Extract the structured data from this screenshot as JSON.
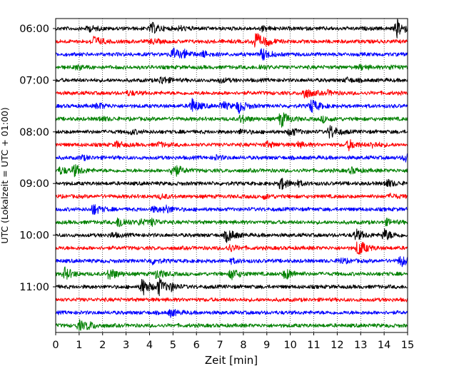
{
  "chart_data": {
    "type": "line",
    "subtype": "helicorder",
    "xlabel": "Zeit  [min]",
    "ylabel": "UTC (Lokalzeit = UTC + 01:00)",
    "xlim": [
      0,
      15
    ],
    "x_ticks": [
      "0",
      "1",
      "2",
      "3",
      "4",
      "5",
      "6",
      "7",
      "8",
      "9",
      "10",
      "11",
      "12",
      "13",
      "14",
      "15"
    ],
    "y_ticks": [
      {
        "label": "06:00",
        "time": "06:00"
      },
      {
        "label": "07:00",
        "time": "07:00"
      },
      {
        "label": "08:00",
        "time": "08:00"
      },
      {
        "label": "09:00",
        "time": "09:00"
      },
      {
        "label": "10:00",
        "time": "10:00"
      },
      {
        "label": "11:00",
        "time": "11:00"
      }
    ],
    "grid": "vertical dotted lines at each minute",
    "start_time": "06:00",
    "minutes_per_line": 15,
    "line_color_cycle": [
      "#000000",
      "#ff0000",
      "#0000ff",
      "#008000"
    ],
    "traces": [
      {
        "start": "06:00",
        "color": "#000000",
        "bursts": [
          [
            1.4,
            0.4
          ],
          [
            4.1,
            0.8
          ],
          [
            5.3,
            0.3
          ],
          [
            8.8,
            0.3
          ],
          [
            14.55,
            1.3
          ]
        ]
      },
      {
        "start": "06:15",
        "color": "#ff0000",
        "bursts": [
          [
            1.6,
            0.8
          ],
          [
            4.1,
            0.3
          ],
          [
            8.5,
            1.4
          ],
          [
            9.0,
            0.3
          ]
        ]
      },
      {
        "start": "06:30",
        "color": "#0000ff",
        "bursts": [
          [
            5.0,
            0.9
          ],
          [
            5.5,
            0.4
          ],
          [
            6.3,
            0.4
          ],
          [
            8.8,
            0.9
          ]
        ]
      },
      {
        "start": "06:45",
        "color": "#008000",
        "bursts": [
          [
            0.9,
            0.3
          ],
          [
            8.7,
            0.3
          ],
          [
            13.0,
            0.3
          ],
          [
            14.3,
            0.3
          ]
        ]
      },
      {
        "start": "07:00",
        "color": "#000000",
        "bursts": [
          [
            4.5,
            0.6
          ],
          [
            7.0,
            0.3
          ],
          [
            12.4,
            0.3
          ]
        ]
      },
      {
        "start": "07:15",
        "color": "#ff0000",
        "bursts": [
          [
            3.1,
            0.3
          ],
          [
            10.6,
            0.8
          ],
          [
            11.6,
            0.3
          ]
        ]
      },
      {
        "start": "07:30",
        "color": "#0000ff",
        "bursts": [
          [
            1.8,
            0.4
          ],
          [
            5.8,
            1.1
          ],
          [
            7.1,
            0.6
          ],
          [
            7.8,
            0.9
          ],
          [
            10.9,
            1.0
          ]
        ]
      },
      {
        "start": "07:45",
        "color": "#008000",
        "bursts": [
          [
            1.9,
            0.3
          ],
          [
            7.9,
            0.6
          ],
          [
            9.6,
            1.2
          ],
          [
            11.4,
            0.4
          ]
        ]
      },
      {
        "start": "08:00",
        "color": "#000000",
        "bursts": [
          [
            3.2,
            0.3
          ],
          [
            7.9,
            0.3
          ],
          [
            10.0,
            0.6
          ],
          [
            11.7,
            1.0
          ]
        ]
      },
      {
        "start": "08:15",
        "color": "#ff0000",
        "bursts": [
          [
            2.6,
            0.4
          ],
          [
            4.4,
            0.3
          ],
          [
            9.0,
            0.4
          ],
          [
            10.3,
            0.4
          ],
          [
            12.5,
            0.7
          ],
          [
            13.5,
            0.4
          ]
        ]
      },
      {
        "start": "08:30",
        "color": "#0000ff",
        "bursts": [
          [
            1.1,
            0.3
          ],
          [
            6.8,
            0.3
          ],
          [
            14.9,
            0.6
          ]
        ]
      },
      {
        "start": "08:45",
        "color": "#008000",
        "bursts": [
          [
            0.2,
            0.5
          ],
          [
            0.8,
            0.8
          ],
          [
            5.0,
            1.1
          ],
          [
            12.6,
            0.4
          ]
        ]
      },
      {
        "start": "09:00",
        "color": "#000000",
        "bursts": [
          [
            9.6,
            0.9
          ],
          [
            10.3,
            0.3
          ],
          [
            14.1,
            0.6
          ]
        ]
      },
      {
        "start": "09:15",
        "color": "#ff0000",
        "bursts": [
          [
            4.5,
            0.3
          ],
          [
            8.9,
            0.3
          ],
          [
            14.3,
            0.3
          ]
        ]
      },
      {
        "start": "09:30",
        "color": "#0000ff",
        "bursts": [
          [
            1.6,
            0.8
          ],
          [
            4.2,
            0.4
          ],
          [
            4.7,
            0.5
          ]
        ]
      },
      {
        "start": "09:45",
        "color": "#008000",
        "bursts": [
          [
            2.7,
            0.9
          ],
          [
            3.6,
            0.4
          ],
          [
            4.1,
            0.4
          ],
          [
            14.1,
            0.4
          ]
        ]
      },
      {
        "start": "10:00",
        "color": "#000000",
        "bursts": [
          [
            2.4,
            0.3
          ],
          [
            7.3,
            1.0
          ],
          [
            12.8,
            0.8
          ],
          [
            14.0,
            0.9
          ]
        ]
      },
      {
        "start": "10:15",
        "color": "#ff0000",
        "bursts": [
          [
            7.4,
            0.5
          ],
          [
            12.9,
            1.3
          ]
        ]
      },
      {
        "start": "10:30",
        "color": "#0000ff",
        "bursts": [
          [
            4.1,
            0.4
          ],
          [
            7.5,
            0.3
          ],
          [
            12.1,
            0.4
          ],
          [
            14.7,
            0.8
          ]
        ]
      },
      {
        "start": "10:45",
        "color": "#008000",
        "bursts": [
          [
            0.4,
            0.9
          ],
          [
            2.3,
            0.9
          ],
          [
            4.3,
            0.7
          ],
          [
            7.5,
            0.8
          ],
          [
            9.8,
            0.8
          ]
        ]
      },
      {
        "start": "11:00",
        "color": "#000000",
        "bursts": [
          [
            3.7,
            1.3
          ],
          [
            4.4,
            1.2
          ],
          [
            4.9,
            0.4
          ]
        ]
      },
      {
        "start": "11:15",
        "color": "#ff0000",
        "bursts": []
      },
      {
        "start": "11:30",
        "color": "#0000ff",
        "bursts": [
          [
            4.9,
            0.5
          ]
        ]
      },
      {
        "start": "11:45",
        "color": "#008000",
        "bursts": [
          [
            1.0,
            0.7
          ],
          [
            1.4,
            0.4
          ]
        ]
      }
    ]
  }
}
